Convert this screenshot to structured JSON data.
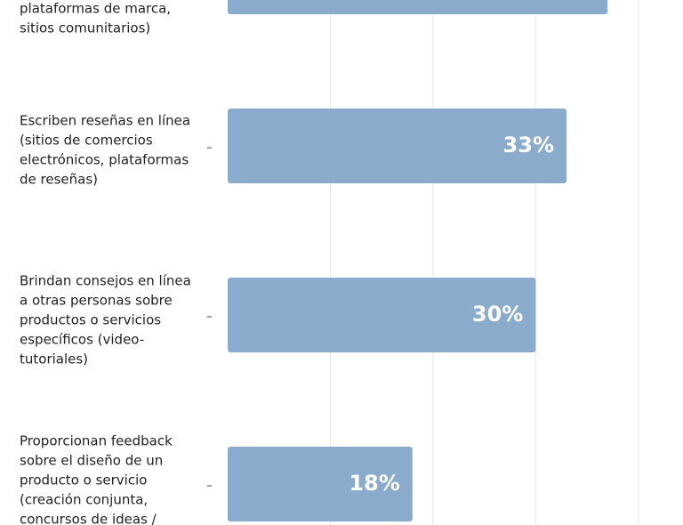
{
  "chart_data": {
    "type": "bar",
    "orientation": "horizontal",
    "categories": [
      [
        "plataformas de marca,",
        "sitios comunitarios)"
      ],
      [
        "Escriben reseñas en línea",
        "(sitios de comercios",
        "electrónicos, plataformas",
        "de reseñas)"
      ],
      [
        "Brindan consejos en línea",
        "a otras personas sobre",
        "productos o servicios",
        "específicos (video-",
        "tutoriales)"
      ],
      [
        "Proporcionan feedback",
        "sobre el diseño de un",
        "producto o servicio",
        "(creación conjunta,",
        "concursos de ideas /"
      ]
    ],
    "values": [
      37,
      33,
      30,
      18
    ],
    "value_labels": [
      null,
      "33%",
      "30%",
      "18%"
    ],
    "color": "#8aabcb",
    "xlim": [
      0,
      44
    ],
    "xticks": [
      10,
      20,
      30,
      40
    ],
    "grid": true
  }
}
